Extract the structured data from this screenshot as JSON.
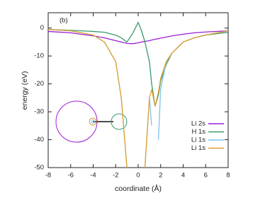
{
  "chart_data": {
    "type": "line",
    "annotation": "(b)",
    "xlabel": "coordinate (Å)",
    "ylabel": "energy (eV)",
    "x": [
      -8,
      -6,
      -4,
      -3,
      -2,
      -1.5,
      -1,
      -0.5,
      0,
      0.3,
      0.6,
      1,
      1.2,
      1.5,
      1.8,
      2,
      2.5,
      3,
      4,
      5,
      6,
      8
    ],
    "series": [
      {
        "name": "Li 2s",
        "color": "#9b1fd6",
        "values": [
          -1.2,
          -1.7,
          -2.8,
          -3.5,
          -4.5,
          -5,
          -5.5,
          -5.6,
          -5.3,
          -5,
          -4.8,
          -4.5,
          -4.3,
          -4,
          -3.8,
          -3.6,
          -3.2,
          -2.8,
          -2.2,
          -1.7,
          -1.4,
          -1
        ]
      },
      {
        "name": "H 1s",
        "color": "#3a9a6a",
        "values": [
          -0.5,
          -0.8,
          -1.2,
          -1.5,
          -2.5,
          -3.5,
          -5,
          -2,
          2,
          -1,
          -5,
          -12,
          -20,
          -28,
          -24,
          -19,
          -13,
          -9,
          -5,
          -3.5,
          -2.5,
          -1.5
        ]
      },
      {
        "name": "Li 1s",
        "color": "#7fc3ea",
        "values": [
          -0.5,
          -1,
          -2.5,
          -5,
          -12,
          -25,
          -50,
          null,
          null,
          null,
          -50,
          -25,
          -35,
          null,
          -40,
          -22,
          -12,
          -9,
          -5,
          -3.5,
          -2.5,
          -1
        ]
      },
      {
        "name": "Li 1s",
        "color": "#e0a030",
        "values": [
          -0.5,
          -1,
          -2.5,
          -5,
          -12,
          -25,
          -50,
          null,
          null,
          null,
          -50,
          -25,
          -22,
          -28,
          -23,
          -18,
          -12,
          -9,
          -5,
          -3.5,
          -2.5,
          -1
        ]
      }
    ],
    "xlim": [
      -8,
      8
    ],
    "xticks": [
      -8,
      -6,
      -4,
      -2,
      0,
      2,
      4,
      6,
      8
    ],
    "ylim": [
      -50,
      5.5
    ],
    "yticks": [
      0,
      -10,
      -20,
      -30,
      -40,
      -50
    ],
    "legend": "lower right"
  }
}
